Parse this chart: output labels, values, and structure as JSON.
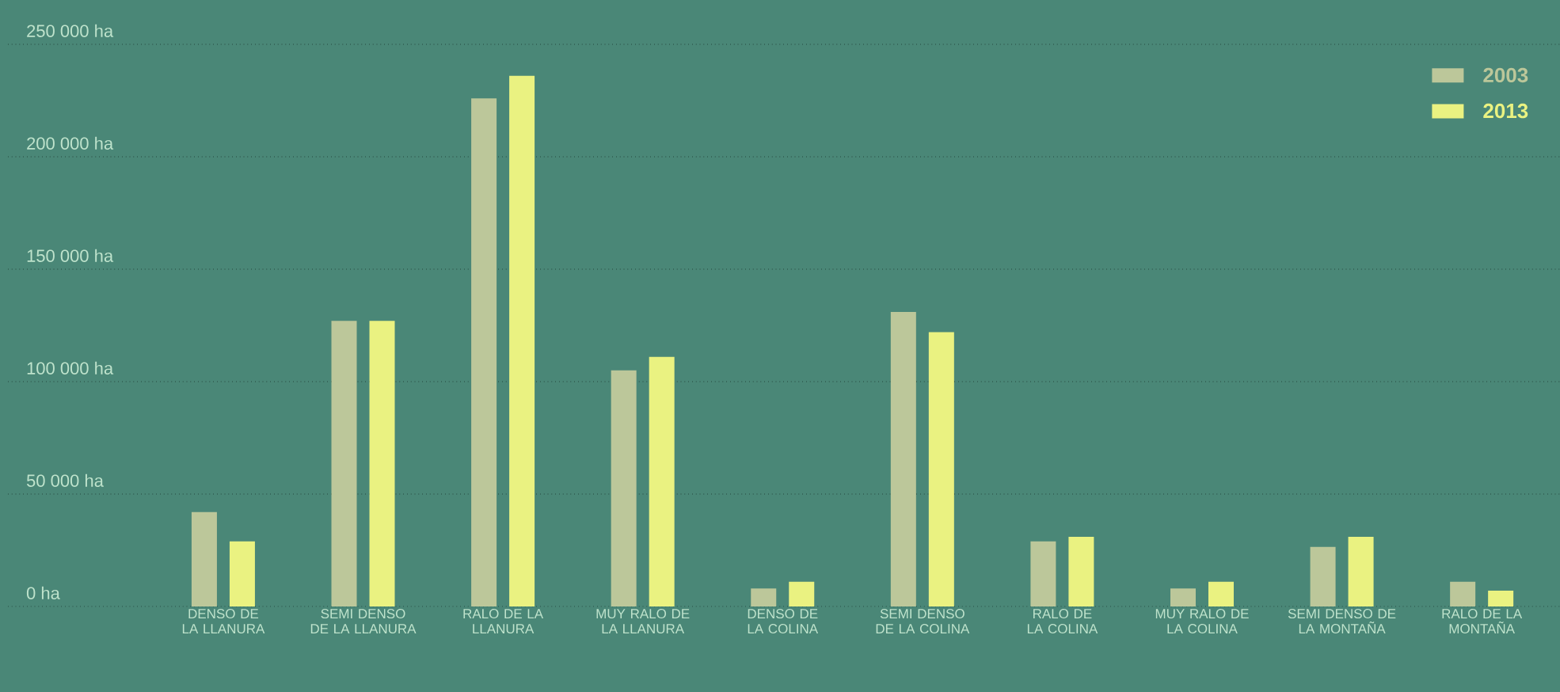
{
  "chart_data": {
    "type": "bar",
    "categories": [
      "DENSO DE LA LLANURA",
      "SEMI DENSO DE LA LLANURA",
      "RALO DE LA LLANURA",
      "MUY RALO DE LA LLANURA",
      "DENSO DE LA COLINA",
      "SEMI DENSO DE LA COLINA",
      "RALO DE LA COLINA",
      "MUY RALO DE LA COLINA",
      "SEMI DENSO DE LA MONTAÑA",
      "RALO DE LA MONTAÑA"
    ],
    "series": [
      {
        "name": "2003",
        "color": "#bcc79a",
        "values": [
          42000,
          127000,
          226000,
          105000,
          8000,
          131000,
          29000,
          8000,
          26500,
          11000
        ]
      },
      {
        "name": "2013",
        "color": "#eaf281",
        "values": [
          29000,
          127000,
          236000,
          111000,
          11000,
          122000,
          31000,
          11000,
          31000,
          7000
        ]
      }
    ],
    "ylim": [
      0,
      250000
    ],
    "yticks": [
      {
        "value": 0,
        "label": "0 ha"
      },
      {
        "value": 50000,
        "label": "50 000 ha"
      },
      {
        "value": 100000,
        "label": "100 000 ha"
      },
      {
        "value": 150000,
        "label": "150 000 ha"
      },
      {
        "value": 200000,
        "label": "200 000 ha"
      },
      {
        "value": 250000,
        "label": "250 000 ha"
      }
    ],
    "grid": "y",
    "legend": "top right"
  }
}
